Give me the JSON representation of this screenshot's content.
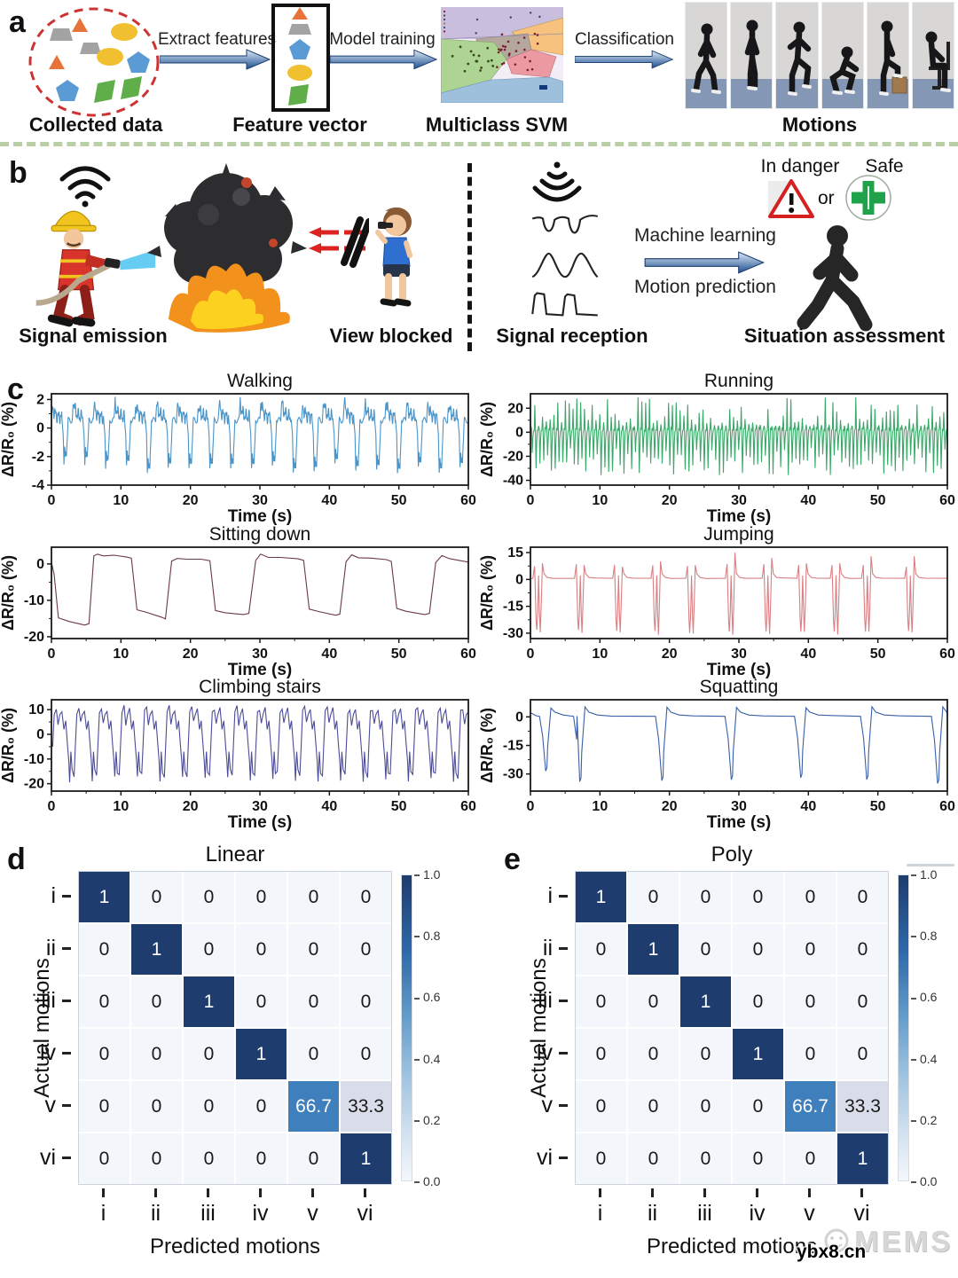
{
  "panels": {
    "a": {
      "label": "a",
      "arrows": [
        "Extract features",
        "Model training",
        "Classification"
      ],
      "captions": [
        "Collected data",
        "Feature vector",
        "Multiclass SVM",
        "Motions"
      ]
    },
    "b": {
      "label": "b",
      "caption_emission": "Signal emission",
      "caption_blocked": "View blocked",
      "caption_reception": "Signal reception",
      "caption_assessment": "Situation assessment",
      "arrow_top": "Machine learning",
      "arrow_bottom": "Motion prediction",
      "danger_label": "In danger",
      "or_label": "or",
      "safe_label": "Safe"
    },
    "c": {
      "label": "c"
    },
    "d": {
      "label": "d"
    },
    "e": {
      "label": "e"
    }
  },
  "watermark": {
    "mems": "MEMS",
    "url": "ybx8.cn"
  },
  "colors": {
    "line_walking": "#4a94c8",
    "line_running": "#3aa868",
    "line_sitting": "#6b3a44",
    "line_jumping": "#d97f82",
    "line_climbing": "#4c4c99",
    "line_squatting": "#3a5fa9",
    "matrix_diag": "#1e3c6e",
    "matrix_mid": "#3f7fbc",
    "matrix_low": "#d9dde9",
    "matrix_empty": "#f3f6fb",
    "separator_green": "#b9d0a6"
  },
  "chart_data": [
    {
      "type": "line",
      "title": "Walking",
      "color": "#4a94c8",
      "xlabel": "Time (s)",
      "ylabel": "ΔR/R₀ (%)",
      "xlim": [
        0,
        60
      ],
      "ylim": [
        -4,
        2.4
      ],
      "xticks": [
        0,
        10,
        20,
        30,
        40,
        50,
        60
      ],
      "yticks": [
        2,
        0,
        -2,
        -4
      ],
      "pattern": {
        "kind": "walking",
        "period_s": 3,
        "peak": 2,
        "trough": -3,
        "cycles": 20
      }
    },
    {
      "type": "line",
      "title": "Running",
      "color": "#3aa868",
      "xlabel": "Time (s)",
      "ylabel": "ΔR/R₀ (%)",
      "xlim": [
        0,
        60
      ],
      "ylim": [
        -44,
        32
      ],
      "xticks": [
        0,
        10,
        20,
        30,
        40,
        50,
        60
      ],
      "yticks": [
        20,
        0,
        -20,
        -40
      ],
      "pattern": {
        "kind": "running",
        "period_s": 0.55,
        "peak_range": [
          5,
          30
        ],
        "trough_range": [
          -13,
          -38
        ]
      }
    },
    {
      "type": "line",
      "title": "Sitting down",
      "color": "#6b3a44",
      "xlabel": "Time (s)",
      "ylabel": "ΔR/R₀ (%)",
      "xlim": [
        0,
        60
      ],
      "ylim": [
        -20.5,
        4.6
      ],
      "xticks": [
        0,
        10,
        20,
        30,
        40,
        50,
        60
      ],
      "yticks": [
        0,
        -10,
        -20
      ],
      "pattern": {
        "kind": "keypoints",
        "points": [
          [
            0,
            0.5
          ],
          [
            0.4,
            -3
          ],
          [
            1,
            -14.8
          ],
          [
            2.5,
            -15.8
          ],
          [
            4.8,
            -16.8
          ],
          [
            5.4,
            -16.4
          ],
          [
            6.1,
            2.2
          ],
          [
            6.6,
            2.7
          ],
          [
            7.5,
            2.2
          ],
          [
            9,
            2.4
          ],
          [
            10.8,
            1.9
          ],
          [
            11.5,
            1.6
          ],
          [
            12.3,
            -12.6
          ],
          [
            13.5,
            -13.2
          ],
          [
            15.8,
            -14.6
          ],
          [
            16.4,
            -15.1
          ],
          [
            17.3,
            0.8
          ],
          [
            18.1,
            1.5
          ],
          [
            19.5,
            1.3
          ],
          [
            21.5,
            1.3
          ],
          [
            22.8,
            0.9
          ],
          [
            23.6,
            -12.8
          ],
          [
            25,
            -13.4
          ],
          [
            27.6,
            -13.9
          ],
          [
            28.4,
            -13.6
          ],
          [
            29.4,
            1
          ],
          [
            30.1,
            2.7
          ],
          [
            31.2,
            1.8
          ],
          [
            33,
            1.8
          ],
          [
            35.5,
            1.4
          ],
          [
            36.3,
            1
          ],
          [
            37.1,
            -12.4
          ],
          [
            38.5,
            -13.1
          ],
          [
            40.9,
            -14.1
          ],
          [
            41.5,
            -13.8
          ],
          [
            42.4,
            0.6
          ],
          [
            43.2,
            2.5
          ],
          [
            44.2,
            1.7
          ],
          [
            46,
            1.6
          ],
          [
            48.2,
            1.2
          ],
          [
            48.9,
            0.7
          ],
          [
            49.7,
            -12.2
          ],
          [
            51,
            -13
          ],
          [
            53.7,
            -13.9
          ],
          [
            54.4,
            -13.6
          ],
          [
            55.3,
            0.4
          ],
          [
            56.2,
            2.3
          ],
          [
            57.2,
            1.5
          ],
          [
            58.6,
            1
          ],
          [
            60,
            0.5
          ]
        ]
      }
    },
    {
      "type": "line",
      "title": "Jumping",
      "color": "#d97f82",
      "xlabel": "Time (s)",
      "ylabel": "ΔR/R₀ (%)",
      "xlim": [
        0,
        60
      ],
      "ylim": [
        -33,
        18
      ],
      "xticks": [
        0,
        10,
        20,
        30,
        40,
        50,
        60
      ],
      "yticks": [
        15,
        0,
        -15,
        -30
      ],
      "pattern": {
        "kind": "jumping",
        "group_times": [
          0.9,
          6.9,
          12.4,
          17.9,
          22.9,
          28.6,
          33.9,
          38.9,
          43.7,
          48.2,
          54.4
        ],
        "dip": -28,
        "peak_after": [
          9,
          8,
          7,
          10,
          8,
          15,
          12,
          9,
          9,
          13,
          13
        ]
      }
    },
    {
      "type": "line",
      "title": "Climbing stairs",
      "color": "#4c4c99",
      "xlabel": "Time (s)",
      "ylabel": "ΔR/R₀ (%)",
      "xlim": [
        0,
        60
      ],
      "ylim": [
        -23,
        14
      ],
      "xticks": [
        0,
        10,
        20,
        30,
        40,
        50,
        60
      ],
      "yticks": [
        10,
        0,
        -10,
        -20
      ],
      "pattern": {
        "kind": "climbing",
        "period_s": 3.25,
        "peak": 10,
        "trough": -18,
        "cycles": 18
      }
    },
    {
      "type": "line",
      "title": "Squatting",
      "color": "#3a5fa9",
      "xlabel": "Time (s)",
      "ylabel": "ΔR/R₀ (%)",
      "xlim": [
        0,
        60
      ],
      "ylim": [
        -39,
        9
      ],
      "xticks": [
        0,
        10,
        20,
        30,
        40,
        50,
        60
      ],
      "yticks": [
        0,
        -15,
        -30
      ],
      "pattern": {
        "kind": "squat",
        "dip_times": [
          2.2,
          7.1,
          18.9,
          28.9,
          38.9,
          48.4,
          58.6
        ],
        "dip_depths": [
          -28.5,
          -34,
          -33.5,
          -33,
          -32,
          -33,
          -35
        ],
        "overshoot": 5
      }
    },
    {
      "type": "heatmap",
      "title": "Linear",
      "xlabel": "Predicted motions",
      "ylabel": "Actual motions",
      "rows": [
        "i",
        "ii",
        "iii",
        "iv",
        "v",
        "vi"
      ],
      "cols": [
        "i",
        "ii",
        "iii",
        "iv",
        "v",
        "vi"
      ],
      "values": [
        [
          1,
          0,
          0,
          0,
          0,
          0
        ],
        [
          0,
          1,
          0,
          0,
          0,
          0
        ],
        [
          0,
          0,
          1,
          0,
          0,
          0
        ],
        [
          0,
          0,
          0,
          1,
          0,
          0
        ],
        [
          0,
          0,
          0,
          0,
          66.7,
          33.3
        ],
        [
          0,
          0,
          0,
          0,
          0,
          1
        ]
      ],
      "colorbar_ticks": [
        "1.0",
        "0.8",
        "0.6",
        "0.4",
        "0.2",
        "0.0"
      ]
    },
    {
      "type": "heatmap",
      "title": "Poly",
      "xlabel": "Predicted motions",
      "ylabel": "Actual motions",
      "rows": [
        "i",
        "ii",
        "iii",
        "iv",
        "v",
        "vi"
      ],
      "cols": [
        "i",
        "ii",
        "iii",
        "iv",
        "v",
        "vi"
      ],
      "values": [
        [
          1,
          0,
          0,
          0,
          0,
          0
        ],
        [
          0,
          1,
          0,
          0,
          0,
          0
        ],
        [
          0,
          0,
          1,
          0,
          0,
          0
        ],
        [
          0,
          0,
          0,
          1,
          0,
          0
        ],
        [
          0,
          0,
          0,
          0,
          66.7,
          33.3
        ],
        [
          0,
          0,
          0,
          0,
          0,
          1
        ]
      ],
      "colorbar_ticks": [
        "1.0",
        "0.8",
        "0.6",
        "0.4",
        "0.2",
        "0.0"
      ]
    }
  ]
}
